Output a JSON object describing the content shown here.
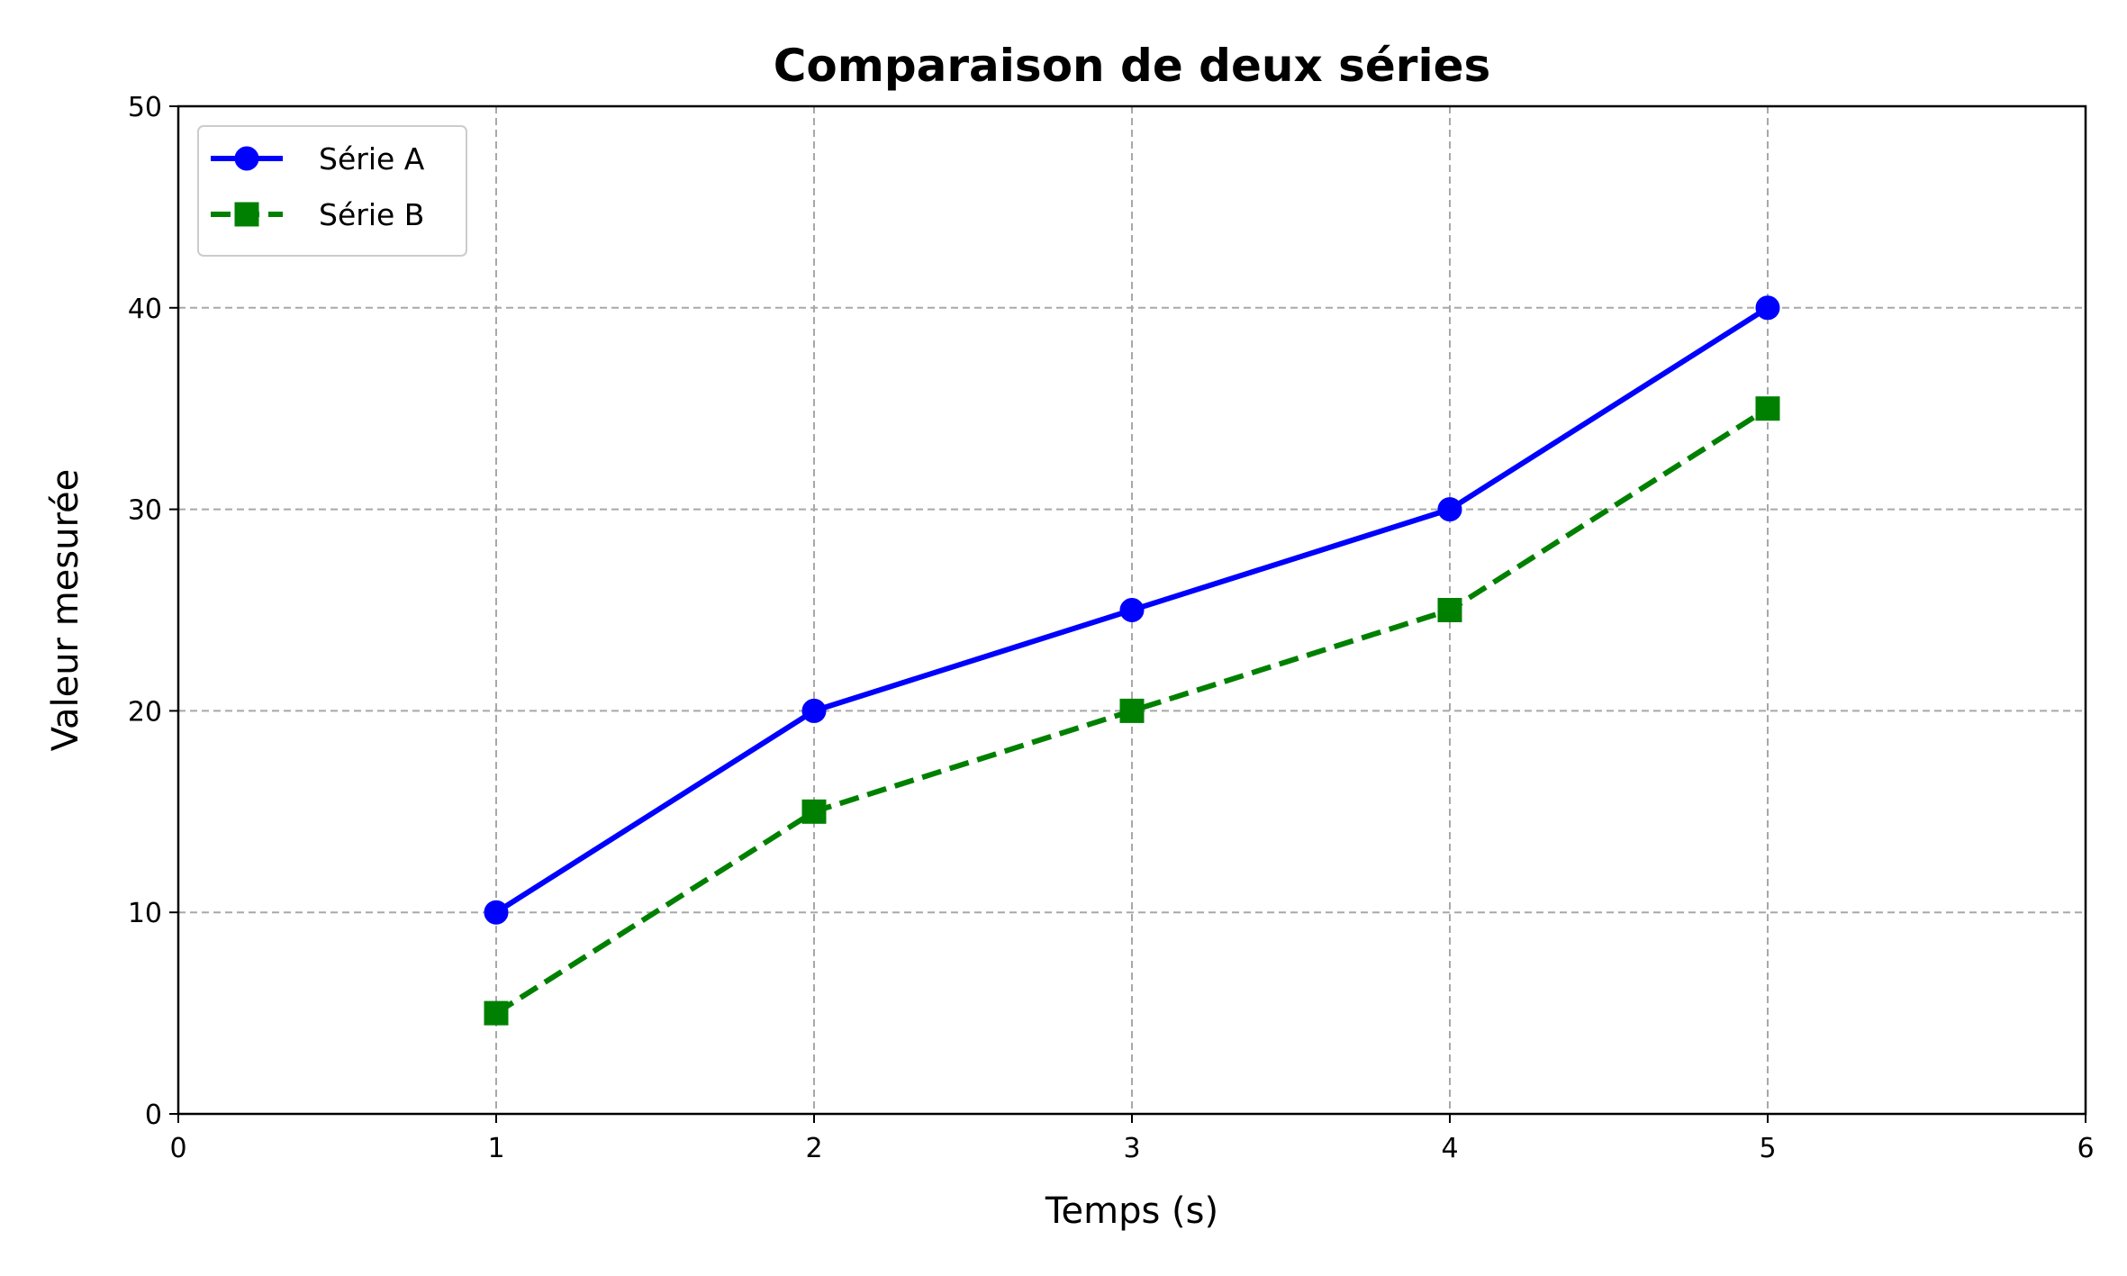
{
  "chart_data": {
    "type": "line",
    "title": "Comparaison de deux séries",
    "xlabel": "Temps (s)",
    "ylabel": "Valeur mesurée",
    "xlim": [
      0,
      6
    ],
    "ylim": [
      0,
      50
    ],
    "xticks": [
      0,
      1,
      2,
      3,
      4,
      5,
      6
    ],
    "yticks": [
      0,
      10,
      20,
      30,
      40,
      50
    ],
    "grid": true,
    "grid_style": "dashed",
    "legend_position": "top-left",
    "x": [
      1,
      2,
      3,
      4,
      5
    ],
    "series": [
      {
        "name": "Série A",
        "values": [
          10,
          20,
          25,
          30,
          40
        ],
        "color": "#0000ff",
        "line_style": "solid",
        "marker": "circle"
      },
      {
        "name": "Série B",
        "values": [
          5,
          15,
          20,
          25,
          35
        ],
        "color": "#008000",
        "line_style": "dashed",
        "marker": "square"
      }
    ]
  }
}
